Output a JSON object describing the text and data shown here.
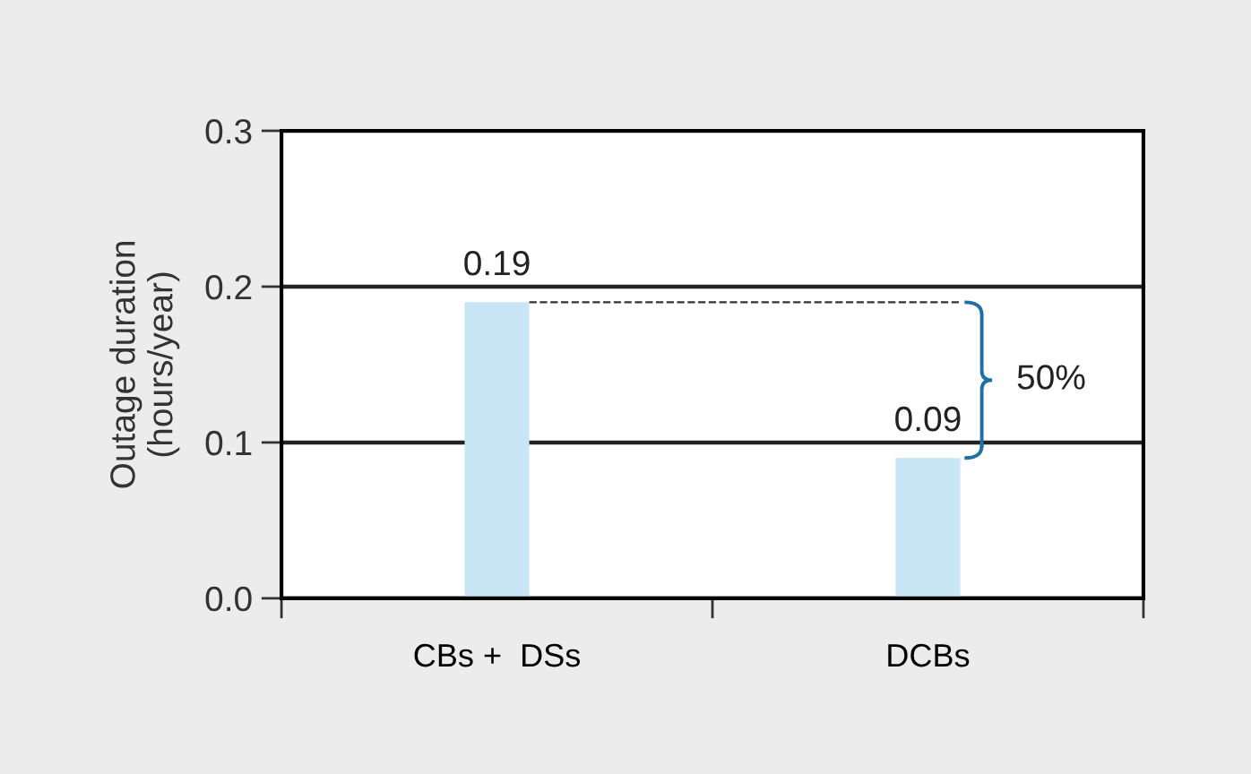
{
  "chart_data": {
    "type": "bar",
    "ylabel": "Outage duration\n(hours/year)",
    "categories": [
      "CBs +  DSs",
      "DCBs"
    ],
    "values": [
      0.19,
      0.09
    ],
    "color": "#c9e6f7",
    "ylim": [
      0,
      0.3
    ],
    "yticks": [
      {
        "value": 0,
        "label": "0.0"
      },
      0.1,
      0.2,
      0.3
    ],
    "grid": "y",
    "data_labels": true,
    "annotations": [
      "50%"
    ]
  }
}
